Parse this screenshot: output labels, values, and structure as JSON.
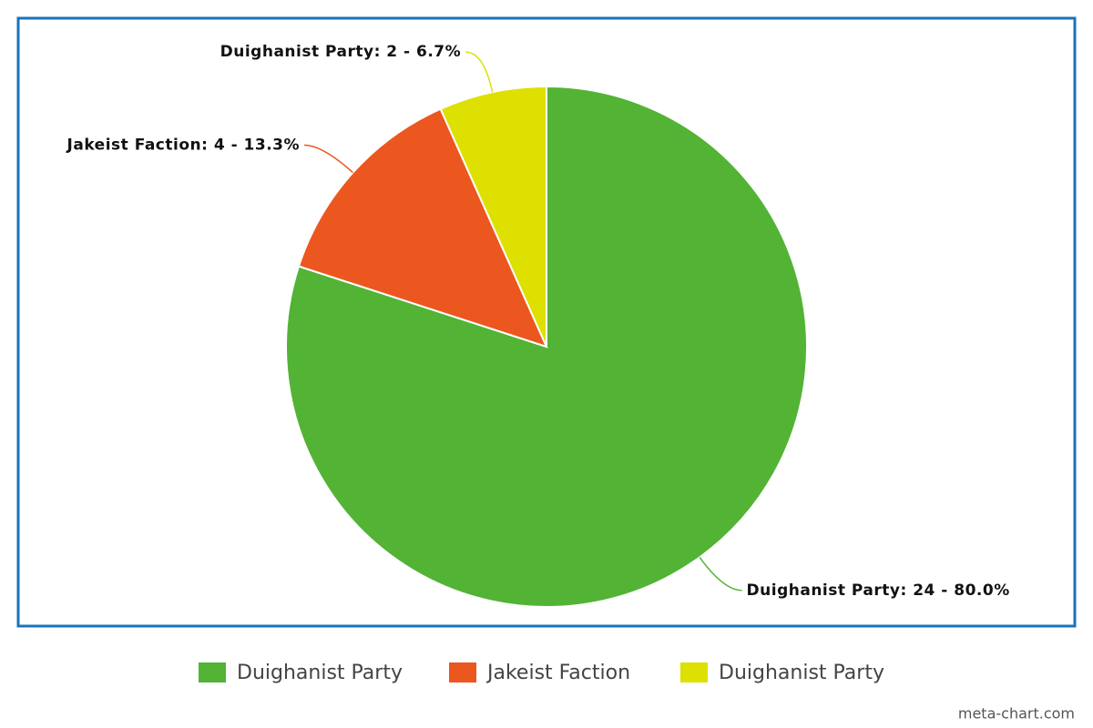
{
  "chart_data": {
    "type": "pie",
    "categories": [
      "Duighanist Party",
      "Jakeist Faction",
      "Duighanist Party"
    ],
    "values": [
      24,
      4,
      2
    ],
    "value_labels": [
      "Duighanist Party: 24 - 80.0%",
      "Jakeist Faction: 4 - 13.3%",
      "Duighanist Party: 2 - 6.7%"
    ],
    "colors": [
      "#52b335",
      "#ec561f",
      "#dde000"
    ],
    "credit": "meta-chart.com"
  }
}
